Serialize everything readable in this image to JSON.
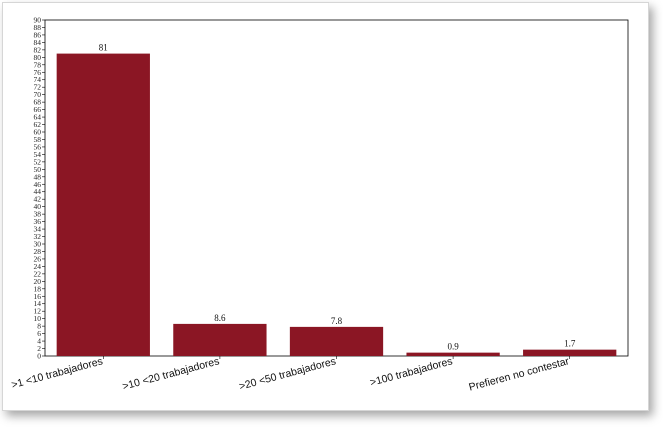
{
  "chart_data": {
    "type": "bar",
    "title": "",
    "xlabel": "",
    "ylabel": "",
    "categories": [
      ">1 <10 trabajadores",
      ">10 <20 trabajadores",
      ">20 <50 trabajadores",
      ">100 trabajadores",
      "Prefieren no contestar"
    ],
    "values": [
      81,
      8.6,
      7.8,
      0.9,
      1.7
    ],
    "value_labels": [
      "81",
      "8.6",
      "7.8",
      "0.9",
      "1.7"
    ],
    "ylim": [
      0,
      90
    ],
    "ytick_step": 2,
    "grid": false,
    "legend": "none",
    "colors": {
      "bar": "#8b1624",
      "axis": "#000000"
    }
  }
}
